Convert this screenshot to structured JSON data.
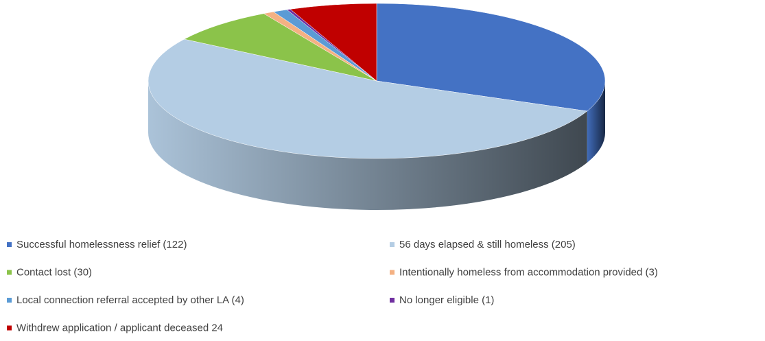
{
  "chart_data": {
    "type": "pie",
    "categories": [
      "Successful homelessness relief (122)",
      "56 days elapsed & still homeless (205)",
      "Contact lost (30)",
      "Intentionally homeless from accommodation provided (3)",
      "Local connection referral accepted by other LA (4)",
      "No longer eligible (1)",
      "Withdrew application / applicant deceased 24"
    ],
    "values": [
      122,
      205,
      30,
      3,
      4,
      1,
      24
    ],
    "colors": [
      "#4472c4",
      "#b4cde4",
      "#8bc34a",
      "#f4b183",
      "#5b9bd5",
      "#7030a0",
      "#c00000"
    ],
    "legend": "bottom"
  }
}
